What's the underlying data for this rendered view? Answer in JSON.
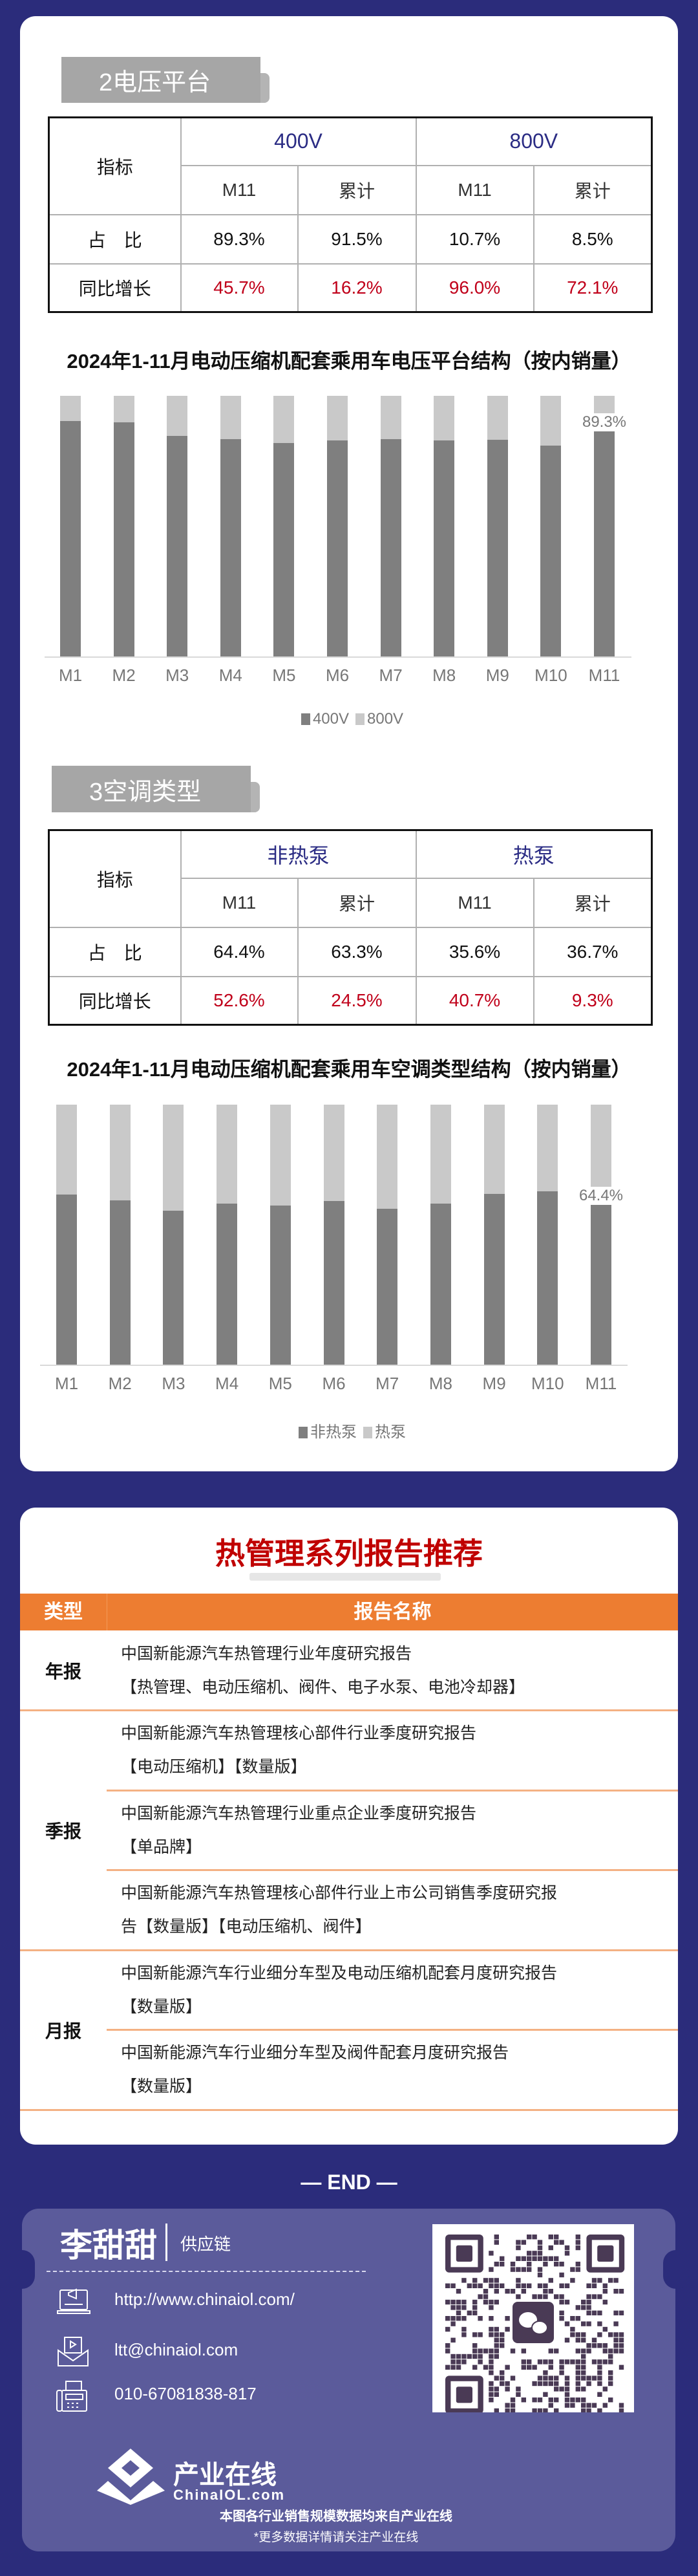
{
  "voltage": {
    "tag": "2电压平台",
    "header": "指标",
    "groups": [
      "400V",
      "800V"
    ],
    "sub": [
      "M11",
      "累计",
      "M11",
      "累计"
    ],
    "rows": [
      {
        "label": "占　比",
        "values": [
          "89.3%",
          "91.5%",
          "10.7%",
          "8.5%"
        ]
      },
      {
        "label": "同比增长",
        "values": [
          "45.7%",
          "16.2%",
          "96.0%",
          "72.1%"
        ]
      }
    ]
  },
  "ac": {
    "tag": "3空调类型",
    "header": "指标",
    "groups": [
      "非热泵",
      "热泵"
    ],
    "sub": [
      "M11",
      "累计",
      "M11",
      "累计"
    ],
    "rows": [
      {
        "label": "占　比",
        "values": [
          "64.4%",
          "63.3%",
          "35.6%",
          "36.7%"
        ]
      },
      {
        "label": "同比增长",
        "values": [
          "52.6%",
          "24.5%",
          "40.7%",
          "9.3%"
        ]
      }
    ]
  },
  "chart_data": [
    {
      "type": "bar",
      "stacked": true,
      "title": "2024年1-11月电动压缩机配套乘用车电压平台结构（按内销量）",
      "categories": [
        "M1",
        "M2",
        "M3",
        "M4",
        "M5",
        "M6",
        "M7",
        "M8",
        "M9",
        "M10",
        "M11"
      ],
      "series": [
        {
          "name": "400V",
          "color": "#7f7f7f",
          "values": [
            90.2,
            89.9,
            84.6,
            83.4,
            81.9,
            83.0,
            83.3,
            82.9,
            83.2,
            81.0,
            89.3
          ]
        },
        {
          "name": "800V",
          "color": "#c9c9c9",
          "values": [
            9.8,
            10.1,
            15.4,
            16.6,
            18.1,
            17.0,
            16.7,
            17.1,
            16.8,
            19.0,
            10.7
          ]
        }
      ],
      "data_labels": [
        {
          "category": "M11",
          "text": "89.3%"
        }
      ],
      "ylim": [
        0,
        100
      ],
      "legend": "bottom"
    },
    {
      "type": "bar",
      "stacked": true,
      "title": "2024年1-11月电动压缩机配套乘用车空调类型结构（按内销量）",
      "categories": [
        "M1",
        "M2",
        "M3",
        "M4",
        "M5",
        "M6",
        "M7",
        "M8",
        "M9",
        "M10",
        "M11"
      ],
      "series": [
        {
          "name": "非热泵",
          "color": "#7f7f7f",
          "values": [
            65.3,
            63.1,
            59.2,
            61.9,
            61.3,
            63.0,
            59.9,
            61.9,
            65.6,
            66.6,
            64.4
          ]
        },
        {
          "name": "热泵",
          "color": "#c9c9c9",
          "values": [
            34.7,
            36.9,
            40.8,
            38.1,
            38.7,
            37.0,
            40.1,
            38.1,
            34.4,
            33.4,
            35.6
          ]
        }
      ],
      "data_labels": [
        {
          "category": "M11",
          "text": "64.4%"
        }
      ],
      "ylim": [
        0,
        100
      ],
      "legend": "bottom"
    }
  ],
  "reports": {
    "title": "热管理系列报告推荐",
    "col_type": "类型",
    "col_name": "报告名称",
    "types": [
      "年报",
      "季报",
      "月报"
    ],
    "items": [
      {
        "lines": [
          "中国新能源汽车热管理行业年度研究报告",
          "【热管理、电动压缩机、阀件、电子水泵、电池冷却器】"
        ]
      },
      {
        "lines": [
          "中国新能源汽车热管理核心部件行业季度研究报告",
          "【电动压缩机】【数量版】"
        ]
      },
      {
        "lines": [
          "中国新能源汽车热管理行业重点企业季度研究报告",
          "【单品牌】"
        ]
      },
      {
        "lines": [
          "中国新能源汽车热管理核心部件行业上市公司销售季度研究报",
          "告【数量版】【电动压缩机、阀件】"
        ]
      },
      {
        "lines": [
          "中国新能源汽车行业细分车型及电动压缩机配套月度研究报告",
          "【数量版】"
        ]
      },
      {
        "lines": [
          "中国新能源汽车行业细分车型及阀件配套月度研究报告",
          "【数量版】"
        ]
      }
    ]
  },
  "footer": {
    "end": "— END —",
    "name": "李甜甜",
    "role": "供应链",
    "website": "http://www.chinaiol.com/",
    "email": "ltt@chinaiol.com",
    "phone": "010-67081838-817",
    "logo_cn": "产业在线",
    "logo_en": "ChinaIOL.com",
    "note1": "本图各行业销售规模数据均来自产业在线",
    "note2": "*更多数据详情请关注产业在线"
  }
}
